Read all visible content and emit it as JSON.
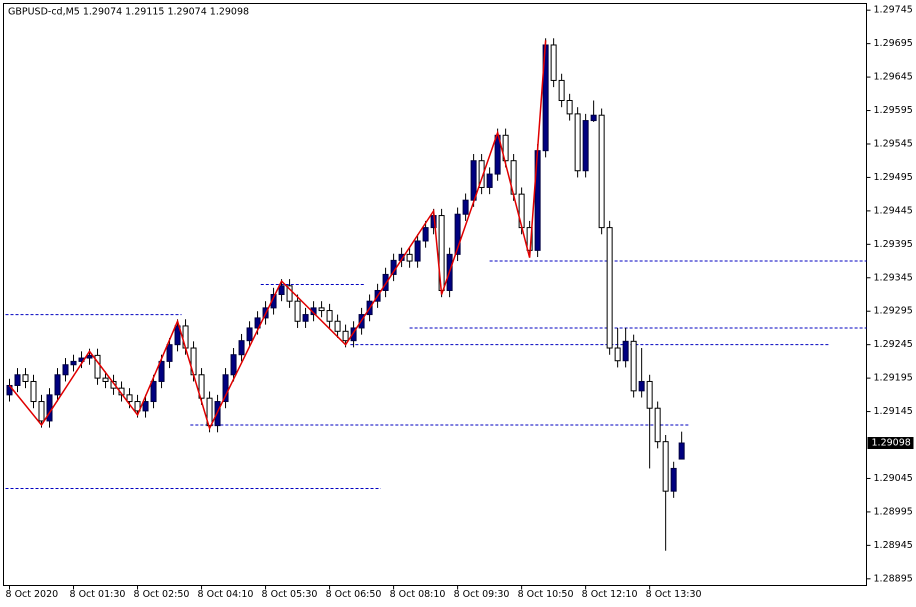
{
  "chart_data": {
    "type": "candlestick",
    "title": "GBPUSD-cd,M5  1.29074 1.29115 1.29074 1.29098",
    "x": [
      0,
      1,
      2,
      3,
      4,
      5,
      6,
      7,
      8,
      9,
      10,
      11,
      12,
      13,
      14,
      15,
      16,
      17,
      18,
      19,
      20,
      21,
      22,
      23,
      24,
      25,
      26,
      27,
      28,
      29,
      30,
      31,
      32,
      33,
      34,
      35,
      36,
      37,
      38,
      39,
      40,
      41,
      42,
      43,
      44,
      45,
      46,
      47,
      48,
      49,
      50,
      51,
      52,
      53,
      54,
      55,
      56,
      57,
      58,
      59,
      60,
      61,
      62,
      63,
      64,
      65,
      66,
      67,
      68,
      69,
      70,
      71,
      72,
      73,
      74,
      75,
      76,
      77,
      78,
      79,
      80,
      81,
      82,
      83,
      84
    ],
    "open": [
      1.2917,
      1.29184,
      1.292,
      1.2919,
      1.2916,
      1.29131,
      1.2917,
      1.292,
      1.29215,
      1.2922,
      1.29225,
      1.29229,
      1.29195,
      1.2919,
      1.2918,
      1.2917,
      1.2916,
      1.29146,
      1.2916,
      1.2919,
      1.2922,
      1.29245,
      1.29273,
      1.2924,
      1.292,
      1.29165,
      1.29124,
      1.2916,
      1.292,
      1.2923,
      1.29251,
      1.2927,
      1.29285,
      1.293,
      1.2932,
      1.29333,
      1.2931,
      1.2928,
      1.2929,
      1.293,
      1.29296,
      1.2928,
      1.29265,
      1.29251,
      1.2927,
      1.2929,
      1.2931,
      1.29326,
      1.2935,
      1.29371,
      1.2938,
      1.2937,
      1.294,
      1.2942,
      1.29438,
      1.29326,
      1.2938,
      1.2944,
      1.29461,
      1.2952,
      1.2948,
      1.295,
      1.29558,
      1.2952,
      1.2947,
      1.2942,
      1.29386,
      1.29535,
      1.29693,
      1.2964,
      1.2961,
      1.2959,
      1.29505,
      1.2958,
      1.29588,
      1.2942,
      1.2924,
      1.29221,
      1.2925,
      1.29176,
      1.2919,
      1.2915,
      1.291,
      1.29026,
      1.29074
    ],
    "high": [
      1.29194,
      1.2921,
      1.2921,
      1.292,
      1.2917,
      1.2918,
      1.2921,
      1.29225,
      1.2923,
      1.29235,
      1.29239,
      1.29239,
      1.29205,
      1.292,
      1.2919,
      1.2918,
      1.2917,
      1.2917,
      1.292,
      1.2923,
      1.29255,
      1.29283,
      1.29283,
      1.2925,
      1.2921,
      1.29175,
      1.2917,
      1.2921,
      1.2924,
      1.29261,
      1.2928,
      1.29295,
      1.2931,
      1.2933,
      1.29343,
      1.29343,
      1.2932,
      1.293,
      1.2931,
      1.2931,
      1.29306,
      1.2929,
      1.29275,
      1.2928,
      1.293,
      1.2932,
      1.29336,
      1.2936,
      1.29381,
      1.2939,
      1.2939,
      1.2941,
      1.2943,
      1.29448,
      1.29448,
      1.2939,
      1.2945,
      1.29471,
      1.2953,
      1.2953,
      1.2951,
      1.29568,
      1.29568,
      1.2953,
      1.2948,
      1.2943,
      1.29545,
      1.29703,
      1.29703,
      1.2965,
      1.2962,
      1.296,
      1.2959,
      1.2961,
      1.29598,
      1.2943,
      1.2927,
      1.2927,
      1.2926,
      1.2924,
      1.292,
      1.2916,
      1.2911,
      1.2907,
      1.29115
    ],
    "low": [
      1.2916,
      1.29174,
      1.2918,
      1.2915,
      1.29121,
      1.29121,
      1.2916,
      1.2919,
      1.29205,
      1.2921,
      1.29215,
      1.29185,
      1.2918,
      1.2917,
      1.2916,
      1.2915,
      1.29136,
      1.29136,
      1.2915,
      1.2918,
      1.2921,
      1.29235,
      1.2923,
      1.2919,
      1.29155,
      1.29114,
      1.29114,
      1.2915,
      1.2919,
      1.2922,
      1.29241,
      1.2926,
      1.29275,
      1.2929,
      1.2931,
      1.293,
      1.2927,
      1.2927,
      1.2928,
      1.29286,
      1.2927,
      1.29255,
      1.29241,
      1.29241,
      1.2926,
      1.2928,
      1.293,
      1.29316,
      1.2934,
      1.29361,
      1.2936,
      1.2936,
      1.2939,
      1.2941,
      1.29316,
      1.29316,
      1.2937,
      1.2943,
      1.29451,
      1.2947,
      1.2947,
      1.2949,
      1.2951,
      1.2946,
      1.2941,
      1.29376,
      1.29376,
      1.29525,
      1.2963,
      1.296,
      1.2958,
      1.29495,
      1.29495,
      1.29578,
      1.2941,
      1.2923,
      1.29211,
      1.29211,
      1.29166,
      1.29166,
      1.2906,
      1.2909,
      1.28937,
      1.29016,
      1.29074
    ],
    "close": [
      1.29184,
      1.292,
      1.2919,
      1.2916,
      1.29131,
      1.2917,
      1.292,
      1.29215,
      1.2922,
      1.29225,
      1.29229,
      1.29195,
      1.2919,
      1.2918,
      1.2917,
      1.2916,
      1.29146,
      1.2916,
      1.2919,
      1.2922,
      1.29245,
      1.29273,
      1.2924,
      1.292,
      1.29165,
      1.29124,
      1.2916,
      1.292,
      1.2923,
      1.29251,
      1.2927,
      1.29285,
      1.293,
      1.2932,
      1.29333,
      1.2931,
      1.2928,
      1.2929,
      1.293,
      1.29296,
      1.2928,
      1.29265,
      1.29251,
      1.2927,
      1.2929,
      1.2931,
      1.29326,
      1.2935,
      1.29371,
      1.2938,
      1.2937,
      1.294,
      1.2942,
      1.29438,
      1.29326,
      1.2938,
      1.2944,
      1.29461,
      1.2952,
      1.2948,
      1.295,
      1.29558,
      1.2952,
      1.2947,
      1.2942,
      1.29386,
      1.29535,
      1.29693,
      1.2964,
      1.2961,
      1.2959,
      1.29505,
      1.2958,
      1.29588,
      1.2942,
      1.2924,
      1.29221,
      1.2925,
      1.29176,
      1.2919,
      1.2915,
      1.291,
      1.29026,
      1.2906,
      1.29098
    ],
    "up_color": "#000080",
    "down_color": "#000000",
    "zigzag": {
      "color": "#e00000",
      "x": [
        0,
        4,
        10,
        16,
        21,
        25,
        34,
        42,
        53,
        54,
        61,
        65,
        67
      ],
      "y": [
        1.29184,
        1.29125,
        1.29235,
        1.2914,
        1.2928,
        1.2912,
        1.2934,
        1.29245,
        1.29445,
        1.2932,
        1.29562,
        1.29375,
        1.297
      ]
    },
    "levels": {
      "color": "#0000c0",
      "values": [
        1.2929,
        1.29125,
        1.2937,
        1.2927,
        1.29245,
        1.29335,
        1.2903
      ],
      "from": [
        -0.5,
        22.6,
        60,
        50,
        42.6,
        31.4,
        -0.5
      ],
      "to": [
        21.5,
        85,
        107.1,
        107.1,
        102.5,
        44.5,
        46.4
      ]
    },
    "xlim": [
      -0.75,
      107.1
    ],
    "ylim": [
      1.28885,
      1.29755
    ],
    "xticks": [
      {
        "value": 0,
        "label": "8 Oct 2020"
      },
      {
        "value": 8,
        "label": "8 Oct 01:30"
      },
      {
        "value": 16,
        "label": "8 Oct 02:50"
      },
      {
        "value": 24,
        "label": "8 Oct 04:10"
      },
      {
        "value": 32,
        "label": "8 Oct 05:30"
      },
      {
        "value": 40,
        "label": "8 Oct 06:50"
      },
      {
        "value": 48,
        "label": "8 Oct 08:10"
      },
      {
        "value": 56,
        "label": "8 Oct 09:30"
      },
      {
        "value": 64,
        "label": "8 Oct 10:50"
      },
      {
        "value": 72,
        "label": "8 Oct 12:10"
      },
      {
        "value": 80,
        "label": "8 Oct 13:30"
      }
    ],
    "yticks": [
      1.29745,
      1.29695,
      1.29645,
      1.29595,
      1.29545,
      1.29495,
      1.29445,
      1.29395,
      1.29345,
      1.29295,
      1.29245,
      1.29195,
      1.29145,
      1.29045,
      1.28995,
      1.28945,
      1.28895
    ]
  }
}
